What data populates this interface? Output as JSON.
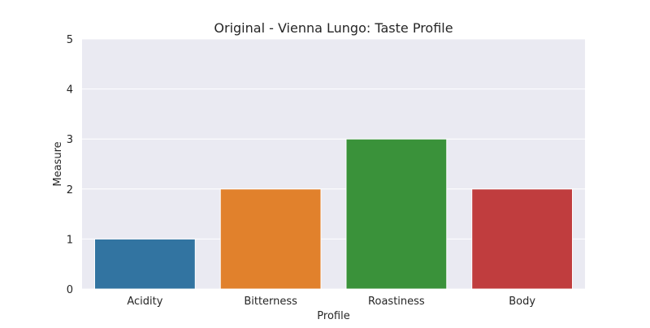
{
  "chart_data": {
    "type": "bar",
    "title": "Original - Vienna Lungo: Taste Profile",
    "xlabel": "Profile",
    "ylabel": "Measure",
    "categories": [
      "Acidity",
      "Bitterness",
      "Roastiness",
      "Body"
    ],
    "values": [
      1,
      2,
      3,
      2
    ],
    "ylim": [
      0,
      5
    ],
    "yticks": [
      "0",
      "1",
      "2",
      "3",
      "4",
      "5"
    ],
    "colors": [
      "#3274a1",
      "#e1812c",
      "#3a923a",
      "#c03d3e"
    ],
    "background": "#eaeaf2",
    "grid": true,
    "legend": "none"
  }
}
